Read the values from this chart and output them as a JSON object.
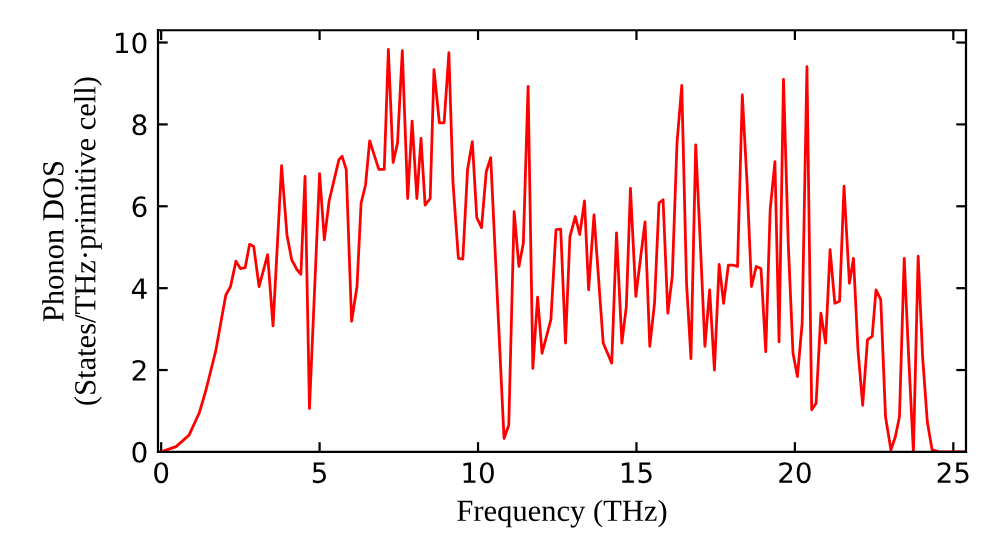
{
  "chart_data": {
    "type": "line",
    "xlabel": "Frequency (THz)",
    "ylabel": "Phonon DOS\n(States/THz·primitive cell)",
    "xlim": [
      -0.1,
      25.4
    ],
    "ylim": [
      0,
      10.3
    ],
    "xticks": [
      0,
      5,
      10,
      15,
      20,
      25
    ],
    "yticks": [
      0,
      2,
      4,
      6,
      8,
      10
    ],
    "grid": false,
    "legend": false,
    "marker": "none",
    "line_style": "solid",
    "series": [
      {
        "color": "#ff0000",
        "x": [
          0,
          0.47,
          0.88,
          1.2,
          1.41,
          1.72,
          2.04,
          2.19,
          2.36,
          2.5,
          2.65,
          2.79,
          2.92,
          3.09,
          3.36,
          3.53,
          3.8,
          3.97,
          4.12,
          4.29,
          4.41,
          4.54,
          4.68,
          5.0,
          5.15,
          5.3,
          5.61,
          5.71,
          5.84,
          6.01,
          6.18,
          6.31,
          6.45,
          6.58,
          6.75,
          6.87,
          7.04,
          7.17,
          7.32,
          7.46,
          7.61,
          7.78,
          7.92,
          8.07,
          8.2,
          8.33,
          8.49,
          8.61,
          8.78,
          8.93,
          9.08,
          9.21,
          9.38,
          9.52,
          9.67,
          9.82,
          9.96,
          10.11,
          10.26,
          10.4,
          10.82,
          10.97,
          11.14,
          11.29,
          11.43,
          11.58,
          11.73,
          11.88,
          12.02,
          12.3,
          12.46,
          12.61,
          12.76,
          12.9,
          13.07,
          13.21,
          13.36,
          13.49,
          13.66,
          13.95,
          14.22,
          14.37,
          14.54,
          14.68,
          14.81,
          14.98,
          15.27,
          15.42,
          15.57,
          15.71,
          15.84,
          15.99,
          16.13,
          16.28,
          16.43,
          16.58,
          16.72,
          16.87,
          17.02,
          17.16,
          17.31,
          17.46,
          17.61,
          17.75,
          17.9,
          18.05,
          18.19,
          18.34,
          18.49,
          18.63,
          18.78,
          18.93,
          19.08,
          19.22,
          19.37,
          19.5,
          19.64,
          19.79,
          19.94,
          20.08,
          20.23,
          20.38,
          20.53,
          20.67,
          20.82,
          20.97,
          21.11,
          21.26,
          21.41,
          21.55,
          21.72,
          21.85,
          21.99,
          22.14,
          22.29,
          22.44,
          22.56,
          22.71,
          22.86,
          23.03,
          23.17,
          23.3,
          23.45,
          23.59,
          23.74,
          23.89,
          24.03,
          24.18,
          24.33,
          24.56,
          25.34
        ],
        "values": [
          0,
          0.13,
          0.41,
          0.95,
          1.5,
          2.46,
          3.83,
          4.04,
          4.66,
          4.48,
          4.5,
          5.07,
          5.02,
          4.04,
          4.82,
          3.08,
          6.99,
          5.3,
          4.69,
          4.45,
          4.34,
          6.73,
          1.06,
          6.8,
          5.18,
          6.13,
          7.14,
          7.22,
          6.9,
          3.19,
          4.04,
          6.08,
          6.52,
          7.6,
          7.19,
          6.9,
          6.9,
          9.83,
          7.07,
          7.55,
          9.8,
          6.19,
          8.08,
          6.19,
          7.66,
          6.03,
          6.19,
          9.34,
          8.04,
          8.04,
          9.75,
          6.57,
          4.73,
          4.71,
          6.9,
          7.58,
          5.72,
          5.48,
          6.85,
          7.19,
          0.33,
          0.65,
          5.87,
          4.53,
          5.1,
          8.93,
          2.04,
          3.78,
          2.41,
          3.23,
          5.43,
          5.44,
          2.66,
          5.26,
          5.75,
          5.31,
          6.13,
          3.96,
          5.79,
          2.66,
          2.17,
          5.35,
          2.66,
          3.55,
          6.44,
          3.8,
          5.62,
          2.58,
          3.63,
          6.08,
          6.16,
          3.39,
          4.29,
          7.55,
          8.95,
          4.12,
          2.28,
          7.5,
          5.02,
          2.58,
          3.96,
          2.0,
          4.58,
          3.63,
          4.56,
          4.56,
          4.53,
          8.72,
          6.57,
          4.04,
          4.53,
          4.48,
          2.45,
          5.92,
          7.09,
          2.69,
          9.1,
          5.1,
          2.41,
          1.84,
          3.15,
          9.41,
          1.03,
          1.19,
          3.39,
          2.66,
          4.94,
          3.63,
          3.68,
          6.49,
          4.12,
          4.73,
          2.49,
          1.14,
          2.74,
          2.82,
          3.96,
          3.72,
          0.86,
          0.05,
          0.37,
          0.86,
          4.73,
          2.33,
          0,
          4.78,
          2.33,
          0.73,
          0.05,
          0,
          0
        ]
      }
    ]
  }
}
